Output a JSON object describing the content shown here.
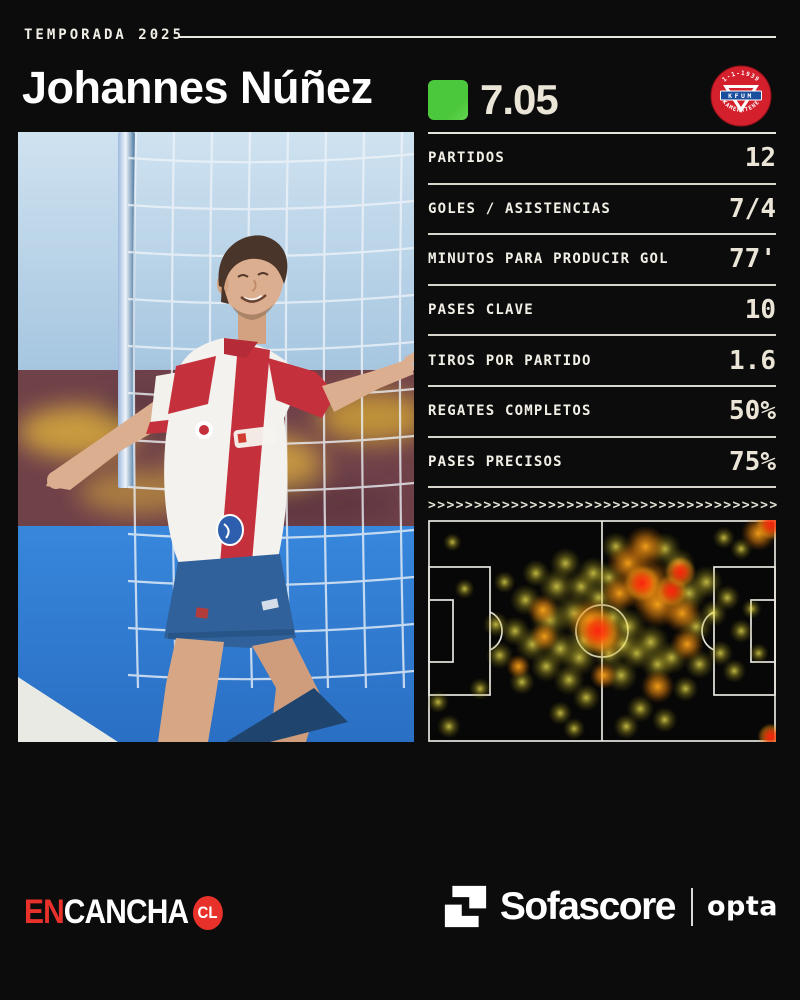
{
  "colors": {
    "bg": "#0c0c0c",
    "accent_green": "#4CC83C",
    "cream": "#EBE5D8",
    "brand_red": "#E8312B",
    "heat_yellow": "#E8D84A",
    "heat_orange": "#FFA417",
    "heat_red": "#FF2A12",
    "badge_red": "#D41F2C",
    "badge_blue": "#1B4F9E"
  },
  "header": {
    "season_label": "TEMPORADA 2025",
    "player_name": "Johannes Núñez",
    "rating": "7.05"
  },
  "badge": {
    "top_text": "1-1-1939",
    "main_text": "KFUM",
    "bottom_text": "KAMERATENE"
  },
  "photo": {
    "scene": "player-goal-celebration"
  },
  "divider": {
    "char": ">",
    "count": 38
  },
  "chart_data": [
    {
      "type": "table",
      "rows": [
        [
          "PARTIDOS",
          "12"
        ],
        [
          "GOLES / ASISTENCIAS",
          "7/4"
        ],
        [
          "MINUTOS PARA PRODUCIR GOL",
          "77'"
        ],
        [
          "PASES CLAVE",
          "10"
        ],
        [
          "TIROS POR PARTIDO",
          "1.6"
        ],
        [
          "REGATES COMPLETOS",
          "50%"
        ],
        [
          "PASES PRECISOS",
          "75%"
        ]
      ]
    },
    {
      "type": "heatmap",
      "pitch": {
        "orientation": "horizontal",
        "lines_color": "#E8E6DF"
      },
      "points": [
        [
          0.488,
          0.5,
          0.048,
          "r"
        ],
        [
          0.615,
          0.285,
          0.04,
          "r"
        ],
        [
          0.7,
          0.32,
          0.036,
          "r"
        ],
        [
          0.725,
          0.235,
          0.034,
          "r"
        ],
        [
          0.986,
          0.02,
          0.034,
          "r"
        ],
        [
          0.985,
          0.975,
          0.028,
          "r"
        ],
        [
          0.468,
          0.455,
          0.05,
          "o"
        ],
        [
          0.505,
          0.53,
          0.045,
          "o"
        ],
        [
          0.575,
          0.195,
          0.045,
          "o"
        ],
        [
          0.63,
          0.29,
          0.06,
          "o"
        ],
        [
          0.66,
          0.38,
          0.05,
          "o"
        ],
        [
          0.73,
          0.42,
          0.042,
          "o"
        ],
        [
          0.625,
          0.12,
          0.045,
          "o"
        ],
        [
          0.55,
          0.33,
          0.04,
          "o"
        ],
        [
          0.745,
          0.56,
          0.036,
          "o"
        ],
        [
          0.66,
          0.75,
          0.036,
          "o"
        ],
        [
          0.33,
          0.405,
          0.034,
          "o"
        ],
        [
          0.335,
          0.525,
          0.032,
          "o"
        ],
        [
          0.95,
          0.06,
          0.038,
          "o"
        ],
        [
          0.505,
          0.7,
          0.03,
          "o"
        ],
        [
          0.26,
          0.66,
          0.026,
          "o"
        ],
        [
          0.029,
          0.82,
          0.024,
          "y"
        ],
        [
          0.06,
          0.93,
          0.026,
          "y"
        ],
        [
          0.07,
          0.1,
          0.02,
          "y"
        ],
        [
          0.105,
          0.31,
          0.022,
          "y"
        ],
        [
          0.15,
          0.76,
          0.024,
          "y"
        ],
        [
          0.195,
          0.47,
          0.028,
          "y"
        ],
        [
          0.206,
          0.61,
          0.03,
          "y"
        ],
        [
          0.22,
          0.28,
          0.024,
          "y"
        ],
        [
          0.25,
          0.5,
          0.032,
          "y"
        ],
        [
          0.27,
          0.73,
          0.028,
          "y"
        ],
        [
          0.28,
          0.36,
          0.034,
          "y"
        ],
        [
          0.3,
          0.56,
          0.038,
          "y"
        ],
        [
          0.31,
          0.24,
          0.03,
          "y"
        ],
        [
          0.34,
          0.66,
          0.034,
          "y"
        ],
        [
          0.35,
          0.45,
          0.042,
          "y"
        ],
        [
          0.37,
          0.3,
          0.04,
          "y"
        ],
        [
          0.38,
          0.58,
          0.04,
          "y"
        ],
        [
          0.395,
          0.195,
          0.034,
          "y"
        ],
        [
          0.405,
          0.72,
          0.034,
          "y"
        ],
        [
          0.42,
          0.42,
          0.044,
          "y"
        ],
        [
          0.435,
          0.62,
          0.04,
          "y"
        ],
        [
          0.44,
          0.3,
          0.036,
          "y"
        ],
        [
          0.455,
          0.8,
          0.03,
          "y"
        ],
        [
          0.475,
          0.24,
          0.036,
          "y"
        ],
        [
          0.38,
          0.87,
          0.026,
          "y"
        ],
        [
          0.42,
          0.94,
          0.024,
          "y"
        ],
        [
          0.52,
          0.6,
          0.036,
          "y"
        ],
        [
          0.53,
          0.44,
          0.04,
          "y"
        ],
        [
          0.54,
          0.12,
          0.032,
          "y"
        ],
        [
          0.555,
          0.7,
          0.036,
          "y"
        ],
        [
          0.575,
          0.48,
          0.04,
          "y"
        ],
        [
          0.6,
          0.6,
          0.036,
          "y"
        ],
        [
          0.61,
          0.85,
          0.03,
          "y"
        ],
        [
          0.64,
          0.55,
          0.04,
          "y"
        ],
        [
          0.66,
          0.65,
          0.036,
          "y"
        ],
        [
          0.68,
          0.13,
          0.036,
          "y"
        ],
        [
          0.7,
          0.62,
          0.036,
          "y"
        ],
        [
          0.72,
          0.2,
          0.036,
          "y"
        ],
        [
          0.75,
          0.33,
          0.04,
          "y"
        ],
        [
          0.77,
          0.48,
          0.036,
          "y"
        ],
        [
          0.78,
          0.65,
          0.032,
          "y"
        ],
        [
          0.8,
          0.28,
          0.036,
          "y"
        ],
        [
          0.82,
          0.42,
          0.03,
          "y"
        ],
        [
          0.84,
          0.6,
          0.028,
          "y"
        ],
        [
          0.86,
          0.35,
          0.028,
          "y"
        ],
        [
          0.88,
          0.68,
          0.026,
          "y"
        ],
        [
          0.9,
          0.5,
          0.026,
          "y"
        ],
        [
          0.93,
          0.4,
          0.022,
          "y"
        ],
        [
          0.95,
          0.6,
          0.022,
          "y"
        ],
        [
          0.9,
          0.13,
          0.024,
          "y"
        ],
        [
          0.85,
          0.08,
          0.024,
          "y"
        ],
        [
          0.57,
          0.93,
          0.028,
          "y"
        ],
        [
          0.68,
          0.9,
          0.028,
          "y"
        ],
        [
          0.74,
          0.76,
          0.028,
          "y"
        ],
        [
          0.52,
          0.26,
          0.034,
          "y"
        ],
        [
          0.49,
          0.35,
          0.036,
          "y"
        ],
        [
          0.45,
          0.54,
          0.04,
          "y"
        ],
        [
          0.56,
          0.56,
          0.036,
          "y"
        ]
      ]
    }
  ],
  "footer": {
    "brand_en": "EN",
    "brand_cancha": "CANCHA",
    "brand_cl": "CL",
    "sofascore": "Sofascore",
    "opta": "opta"
  }
}
